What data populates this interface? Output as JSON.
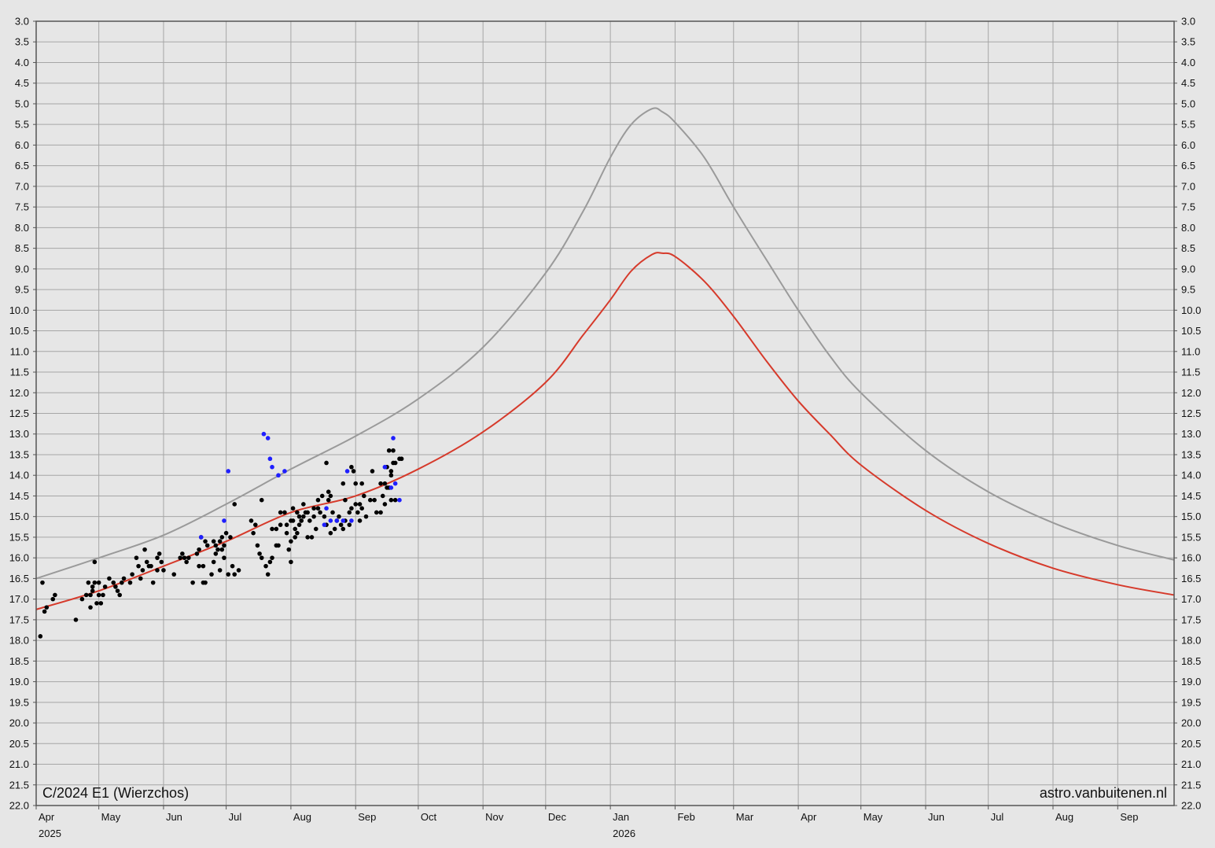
{
  "chart_data": {
    "type": "scatter",
    "title": "C/2024 E1 (Wierzchos)",
    "credit": "astro.vanbuitenen.nl",
    "ylim": [
      22.0,
      3.0
    ],
    "y_inverted": true,
    "y_ticks": [
      "3.0",
      "3.5",
      "4.0",
      "4.5",
      "5.0",
      "5.5",
      "6.0",
      "6.5",
      "7.0",
      "7.5",
      "8.0",
      "8.5",
      "9.0",
      "9.5",
      "10.0",
      "10.5",
      "11.0",
      "11.5",
      "12.0",
      "12.5",
      "13.0",
      "13.5",
      "14.0",
      "14.5",
      "15.0",
      "15.5",
      "16.0",
      "16.5",
      "17.0",
      "17.5",
      "18.0",
      "18.5",
      "19.0",
      "19.5",
      "20.0",
      "20.5",
      "21.0",
      "21.5",
      "22.0"
    ],
    "x_range_days": [
      0,
      545
    ],
    "x_ticks": [
      {
        "label": "Apr",
        "day": 0,
        "year": "2025"
      },
      {
        "label": "May",
        "day": 30
      },
      {
        "label": "Jun",
        "day": 61
      },
      {
        "label": "Jul",
        "day": 91
      },
      {
        "label": "Aug",
        "day": 122
      },
      {
        "label": "Sep",
        "day": 153
      },
      {
        "label": "Oct",
        "day": 183
      },
      {
        "label": "Nov",
        "day": 214
      },
      {
        "label": "Dec",
        "day": 244
      },
      {
        "label": "Jan",
        "day": 275,
        "year": "2026"
      },
      {
        "label": "Feb",
        "day": 306
      },
      {
        "label": "Mar",
        "day": 334
      },
      {
        "label": "Apr",
        "day": 365
      },
      {
        "label": "May",
        "day": 395
      },
      {
        "label": "Jun",
        "day": 426
      },
      {
        "label": "Jul",
        "day": 456
      },
      {
        "label": "Aug",
        "day": 487
      },
      {
        "label": "Sep",
        "day": 518
      }
    ],
    "grid": true,
    "colors": {
      "background": "#e6e6e6",
      "grid": "#a6a6a6",
      "frame": "#555555",
      "gray_curve": "#9a9a9a",
      "red_curve": "#d63a2b",
      "visual_obs": "#000000",
      "blue_obs": "#1f1fff"
    },
    "series": [
      {
        "kind": "line",
        "color": "#9a9a9a",
        "points": [
          [
            0,
            16.5
          ],
          [
            30,
            16.0
          ],
          [
            61,
            15.45
          ],
          [
            91,
            14.7
          ],
          [
            122,
            13.85
          ],
          [
            153,
            13.05
          ],
          [
            183,
            12.15
          ],
          [
            214,
            10.9
          ],
          [
            244,
            9.1
          ],
          [
            262,
            7.6
          ],
          [
            275,
            6.3
          ],
          [
            285,
            5.5
          ],
          [
            295,
            5.12
          ],
          [
            300,
            5.2
          ],
          [
            306,
            5.45
          ],
          [
            320,
            6.3
          ],
          [
            334,
            7.5
          ],
          [
            350,
            8.8
          ],
          [
            365,
            10.0
          ],
          [
            380,
            11.1
          ],
          [
            395,
            12.0
          ],
          [
            426,
            13.4
          ],
          [
            456,
            14.4
          ],
          [
            487,
            15.15
          ],
          [
            518,
            15.7
          ],
          [
            545,
            16.05
          ]
        ]
      },
      {
        "kind": "line",
        "color": "#d63a2b",
        "points": [
          [
            0,
            17.25
          ],
          [
            30,
            16.8
          ],
          [
            61,
            16.2
          ],
          [
            91,
            15.6
          ],
          [
            122,
            14.9
          ],
          [
            153,
            14.5
          ],
          [
            183,
            13.85
          ],
          [
            214,
            12.95
          ],
          [
            244,
            11.75
          ],
          [
            262,
            10.6
          ],
          [
            275,
            9.75
          ],
          [
            285,
            9.05
          ],
          [
            295,
            8.65
          ],
          [
            300,
            8.62
          ],
          [
            306,
            8.7
          ],
          [
            320,
            9.3
          ],
          [
            334,
            10.15
          ],
          [
            350,
            11.25
          ],
          [
            365,
            12.2
          ],
          [
            380,
            13.0
          ],
          [
            395,
            13.75
          ],
          [
            426,
            14.85
          ],
          [
            456,
            15.65
          ],
          [
            487,
            16.25
          ],
          [
            518,
            16.65
          ],
          [
            545,
            16.9
          ]
        ]
      },
      {
        "kind": "scatter",
        "color": "#000000",
        "points": [
          [
            2,
            17.9
          ],
          [
            3,
            16.6
          ],
          [
            4,
            17.3
          ],
          [
            5,
            17.2
          ],
          [
            8,
            17.0
          ],
          [
            9,
            16.9
          ],
          [
            19,
            17.5
          ],
          [
            22,
            17.0
          ],
          [
            24,
            16.9
          ],
          [
            25,
            16.6
          ],
          [
            26,
            16.9
          ],
          [
            26,
            17.2
          ],
          [
            27,
            16.7
          ],
          [
            27,
            16.8
          ],
          [
            28,
            16.1
          ],
          [
            28,
            16.6
          ],
          [
            29,
            17.1
          ],
          [
            30,
            16.9
          ],
          [
            30,
            16.6
          ],
          [
            31,
            17.1
          ],
          [
            32,
            16.9
          ],
          [
            33,
            16.7
          ],
          [
            35,
            16.5
          ],
          [
            37,
            16.6
          ],
          [
            38,
            16.7
          ],
          [
            39,
            16.8
          ],
          [
            40,
            16.9
          ],
          [
            41,
            16.6
          ],
          [
            42,
            16.5
          ],
          [
            45,
            16.6
          ],
          [
            46,
            16.4
          ],
          [
            48,
            16.0
          ],
          [
            49,
            16.2
          ],
          [
            50,
            16.5
          ],
          [
            51,
            16.3
          ],
          [
            52,
            15.8
          ],
          [
            53,
            16.1
          ],
          [
            54,
            16.2
          ],
          [
            55,
            16.2
          ],
          [
            56,
            16.6
          ],
          [
            58,
            16.0
          ],
          [
            58,
            16.3
          ],
          [
            59,
            15.9
          ],
          [
            60,
            16.1
          ],
          [
            61,
            16.3
          ],
          [
            66,
            16.4
          ],
          [
            69,
            16.0
          ],
          [
            70,
            15.9
          ],
          [
            71,
            16.0
          ],
          [
            72,
            16.1
          ],
          [
            73,
            16.0
          ],
          [
            75,
            16.6
          ],
          [
            77,
            15.9
          ],
          [
            78,
            15.8
          ],
          [
            78,
            16.2
          ],
          [
            79,
            15.5
          ],
          [
            80,
            16.2
          ],
          [
            80,
            16.6
          ],
          [
            81,
            15.6
          ],
          [
            81,
            16.6
          ],
          [
            82,
            15.7
          ],
          [
            84,
            16.4
          ],
          [
            85,
            15.6
          ],
          [
            85,
            16.1
          ],
          [
            86,
            15.9
          ],
          [
            86,
            15.7
          ],
          [
            87,
            15.8
          ],
          [
            88,
            15.6
          ],
          [
            88,
            16.3
          ],
          [
            89,
            15.5
          ],
          [
            89,
            15.8
          ],
          [
            90,
            15.7
          ],
          [
            90,
            16.0
          ],
          [
            91,
            15.4
          ],
          [
            92,
            16.4
          ],
          [
            93,
            15.5
          ],
          [
            94,
            16.2
          ],
          [
            95,
            14.7
          ],
          [
            95,
            16.4
          ],
          [
            97,
            16.3
          ],
          [
            103,
            15.1
          ],
          [
            104,
            15.4
          ],
          [
            105,
            15.2
          ],
          [
            106,
            15.7
          ],
          [
            107,
            15.9
          ],
          [
            108,
            14.6
          ],
          [
            108,
            16.0
          ],
          [
            110,
            16.2
          ],
          [
            111,
            16.4
          ],
          [
            112,
            16.1
          ],
          [
            113,
            15.3
          ],
          [
            113,
            16.0
          ],
          [
            115,
            15.3
          ],
          [
            115,
            15.7
          ],
          [
            116,
            15.7
          ],
          [
            117,
            14.9
          ],
          [
            117,
            15.2
          ],
          [
            119,
            14.9
          ],
          [
            120,
            15.4
          ],
          [
            120,
            15.2
          ],
          [
            121,
            15.8
          ],
          [
            122,
            15.1
          ],
          [
            122,
            15.6
          ],
          [
            122,
            16.1
          ],
          [
            123,
            15.1
          ],
          [
            123,
            14.8
          ],
          [
            124,
            15.5
          ],
          [
            124,
            15.3
          ],
          [
            125,
            15.4
          ],
          [
            125,
            14.9
          ],
          [
            126,
            15.2
          ],
          [
            126,
            15.0
          ],
          [
            127,
            15.1
          ],
          [
            127,
            15.1
          ],
          [
            128,
            14.7
          ],
          [
            128,
            15.0
          ],
          [
            129,
            14.9
          ],
          [
            130,
            15.5
          ],
          [
            130,
            14.9
          ],
          [
            131,
            15.1
          ],
          [
            132,
            15.5
          ],
          [
            133,
            14.8
          ],
          [
            133,
            15.0
          ],
          [
            134,
            15.3
          ],
          [
            135,
            14.8
          ],
          [
            135,
            14.6
          ],
          [
            136,
            14.9
          ],
          [
            137,
            14.5
          ],
          [
            138,
            15.0
          ],
          [
            139,
            15.2
          ],
          [
            139,
            13.7
          ],
          [
            140,
            14.6
          ],
          [
            140,
            14.4
          ],
          [
            141,
            15.4
          ],
          [
            141,
            14.5
          ],
          [
            142,
            14.9
          ],
          [
            143,
            15.3
          ],
          [
            144,
            15.1
          ],
          [
            145,
            15.0
          ],
          [
            146,
            15.2
          ],
          [
            147,
            14.2
          ],
          [
            147,
            15.3
          ],
          [
            148,
            14.6
          ],
          [
            148,
            15.1
          ],
          [
            150,
            15.2
          ],
          [
            150,
            14.9
          ],
          [
            151,
            13.8
          ],
          [
            151,
            14.8
          ],
          [
            152,
            13.9
          ],
          [
            153,
            14.2
          ],
          [
            153,
            14.7
          ],
          [
            154,
            14.9
          ],
          [
            155,
            14.7
          ],
          [
            155,
            15.1
          ],
          [
            156,
            14.2
          ],
          [
            156,
            14.8
          ],
          [
            157,
            14.5
          ],
          [
            158,
            15.0
          ],
          [
            160,
            14.6
          ],
          [
            161,
            13.9
          ],
          [
            162,
            14.6
          ],
          [
            163,
            14.9
          ],
          [
            165,
            14.2
          ],
          [
            165,
            14.9
          ],
          [
            166,
            14.5
          ],
          [
            167,
            14.2
          ],
          [
            167,
            14.7
          ],
          [
            168,
            14.3
          ],
          [
            168,
            13.8
          ],
          [
            169,
            13.4
          ],
          [
            169,
            14.3
          ],
          [
            170,
            13.9
          ],
          [
            170,
            14.0
          ],
          [
            170,
            14.6
          ],
          [
            171,
            13.4
          ],
          [
            171,
            13.7
          ],
          [
            172,
            13.7
          ],
          [
            172,
            14.6
          ],
          [
            174,
            13.6
          ],
          [
            175,
            13.6
          ]
        ]
      },
      {
        "kind": "scatter",
        "color": "#1f1fff",
        "points": [
          [
            79,
            15.5
          ],
          [
            90,
            15.1
          ],
          [
            92,
            13.9
          ],
          [
            109,
            13.0
          ],
          [
            111,
            13.1
          ],
          [
            112,
            13.6
          ],
          [
            113,
            13.8
          ],
          [
            116,
            14.0
          ],
          [
            119,
            13.9
          ],
          [
            138,
            15.2
          ],
          [
            139,
            14.8
          ],
          [
            141,
            15.1
          ],
          [
            144,
            15.1
          ],
          [
            147,
            15.1
          ],
          [
            149,
            13.9
          ],
          [
            151,
            15.1
          ],
          [
            167,
            13.8
          ],
          [
            170,
            14.3
          ],
          [
            171,
            13.1
          ],
          [
            172,
            14.2
          ],
          [
            174,
            14.6
          ]
        ]
      }
    ]
  }
}
